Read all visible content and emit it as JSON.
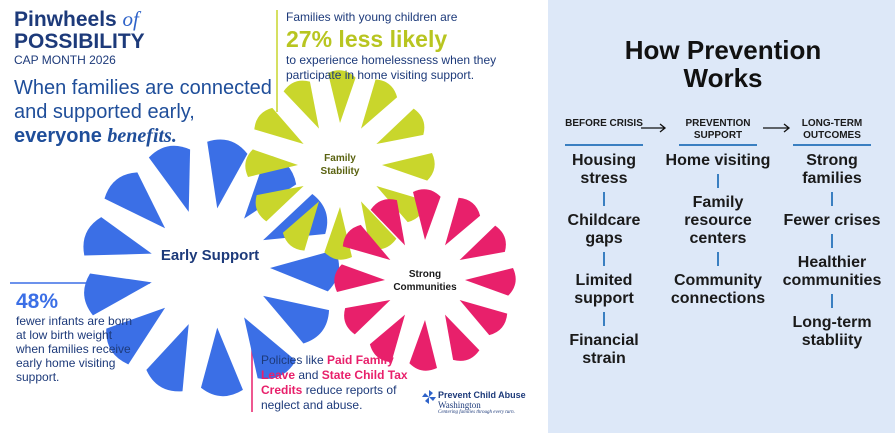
{
  "header": {
    "title_main": "Pinwheels",
    "title_of": "of",
    "title_bold": "POSSIBILITY",
    "subtitle": "CAP MONTH 2026"
  },
  "headline": {
    "text": "When families are connected and supported early,",
    "emphasis": "everyone",
    "emphasis_italic": "benefits."
  },
  "stat_top": {
    "intro": "Families with young children are",
    "highlight": "27% less likely",
    "text": "to experience homelessness when they participate in home visiting support."
  },
  "pinwheels": [
    {
      "label": "Early Support"
    },
    {
      "label": "Family Stability"
    },
    {
      "label": "Strong Communities"
    }
  ],
  "stat_left": {
    "highlight": "48%",
    "text": "fewer infants are born at low birth weight when families receive early home visiting support."
  },
  "policy": {
    "intro": "Policies like",
    "bold_1": "Paid Family Leave",
    "and": "and",
    "bold_2": "State Child Tax Credits",
    "text": "reduce reports of neglect and abuse."
  },
  "logo": {
    "name": "Prevent Child Abuse",
    "state": "Washington",
    "tagline": "Centering families through every turn."
  },
  "prevention": {
    "title": "How Prevention Works",
    "columns": [
      {
        "header": "BEFORE CRISIS",
        "items": [
          "Housing stress",
          "Childcare gaps",
          "Limited support",
          "Financial strain"
        ]
      },
      {
        "header": "PREVENTION SUPPORT",
        "items": [
          "Home visiting",
          "Family resource centers",
          "Community connections"
        ]
      },
      {
        "header": "LONG-TERM OUTCOMES",
        "items": [
          "Strong families",
          "Fewer crises",
          "Healthier communities",
          "Long-term stabliity"
        ]
      }
    ]
  }
}
